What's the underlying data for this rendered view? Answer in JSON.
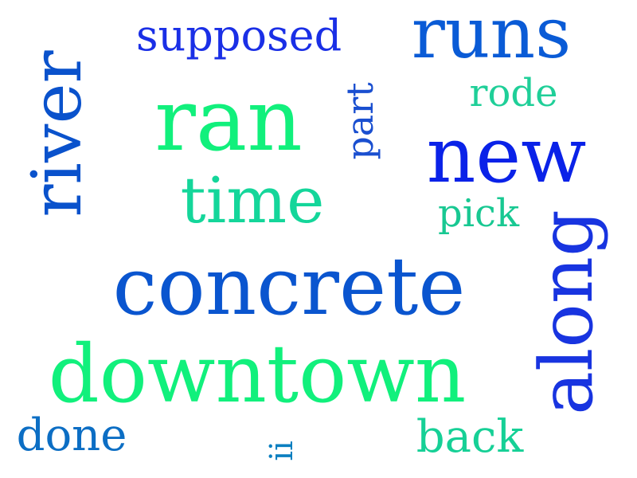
{
  "words": {
    "ran": {
      "text": "ran",
      "color": "#11f07c"
    },
    "runs": {
      "text": "runs",
      "color": "#0a5bd6"
    },
    "supposed": {
      "text": "supposed",
      "color": "#1a2fe6"
    },
    "river": {
      "text": "river",
      "color": "#0a52cc"
    },
    "part": {
      "text": "part",
      "color": "#1a4fd0"
    },
    "rode": {
      "text": "rode",
      "color": "#1fcf98"
    },
    "new": {
      "text": "new",
      "color": "#0a22e8"
    },
    "time": {
      "text": "time",
      "color": "#14d69a"
    },
    "pick": {
      "text": "pick",
      "color": "#18c892"
    },
    "concrete": {
      "text": "concrete",
      "color": "#0a55cf"
    },
    "along": {
      "text": "along",
      "color": "#1834e0"
    },
    "downtown": {
      "text": "downtown",
      "color": "#11f07c"
    },
    "done": {
      "text": "done",
      "color": "#0c6ec4"
    },
    "ii": {
      "text": "ii",
      "color": "#0b7fc0"
    },
    "back": {
      "text": "back",
      "color": "#16d096"
    }
  }
}
